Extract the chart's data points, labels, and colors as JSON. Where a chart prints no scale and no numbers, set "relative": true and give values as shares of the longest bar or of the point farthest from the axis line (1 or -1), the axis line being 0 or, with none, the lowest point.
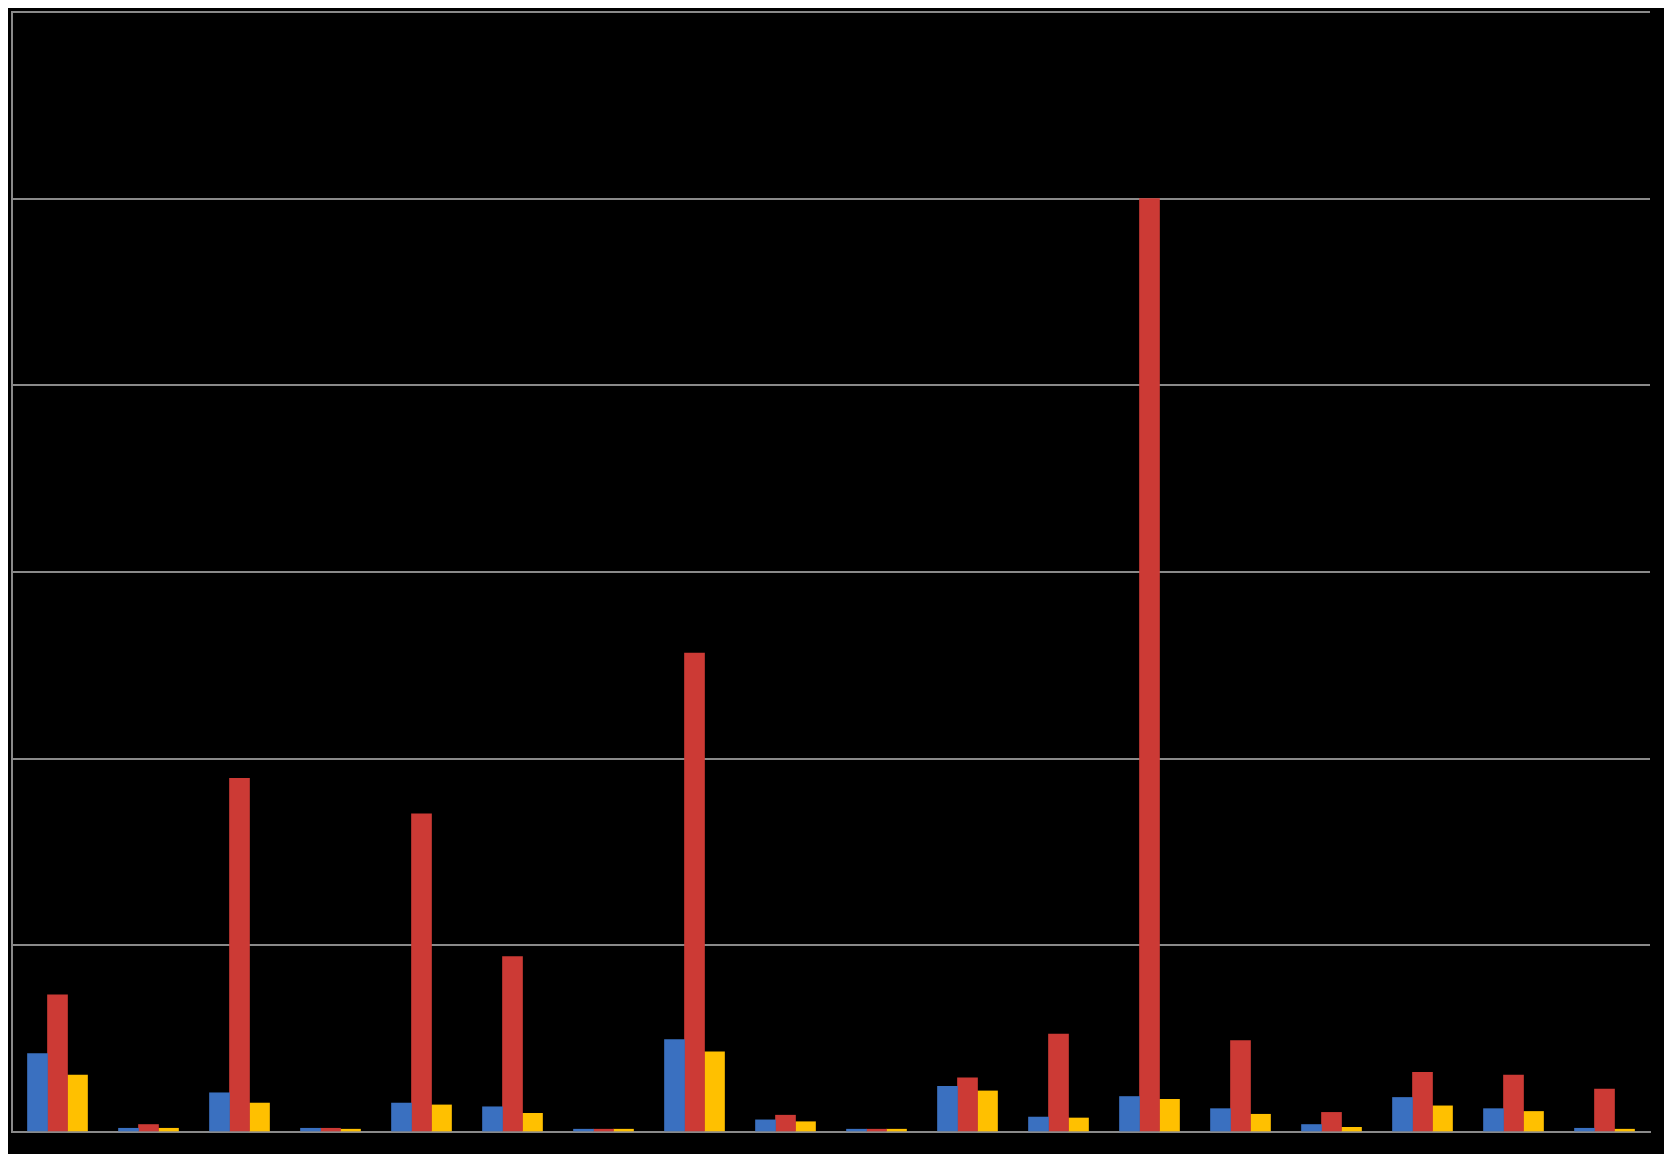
{
  "chart_data": {
    "type": "bar",
    "relative": true,
    "grid": "y",
    "categories": [
      null,
      null,
      null,
      null,
      null,
      null,
      null,
      null,
      null,
      null,
      null,
      null,
      null,
      null,
      null,
      null,
      null,
      null
    ],
    "series": [
      {
        "color": "#3a70c0",
        "values": [
          0.084,
          0.004,
          0.042,
          0.004,
          0.031,
          0.027,
          0.003,
          0.099,
          0.013,
          0.003,
          0.049,
          0.016,
          0.038,
          0.025,
          0.008,
          0.037,
          0.025,
          0.004
        ]
      },
      {
        "color": "#cc3a35",
        "values": [
          0.147,
          0.008,
          0.379,
          0.004,
          0.341,
          0.188,
          0.003,
          0.513,
          0.018,
          0.003,
          0.058,
          0.105,
          1,
          0.098,
          0.021,
          0.064,
          0.061,
          0.046
        ]
      },
      {
        "color": "#ffc000",
        "values": [
          0.061,
          0.004,
          0.031,
          0.003,
          0.029,
          0.02,
          0.003,
          0.086,
          0.011,
          0.003,
          0.044,
          0.015,
          0.035,
          0.019,
          0.005,
          0.028,
          0.022,
          0.003
        ]
      }
    ]
  }
}
